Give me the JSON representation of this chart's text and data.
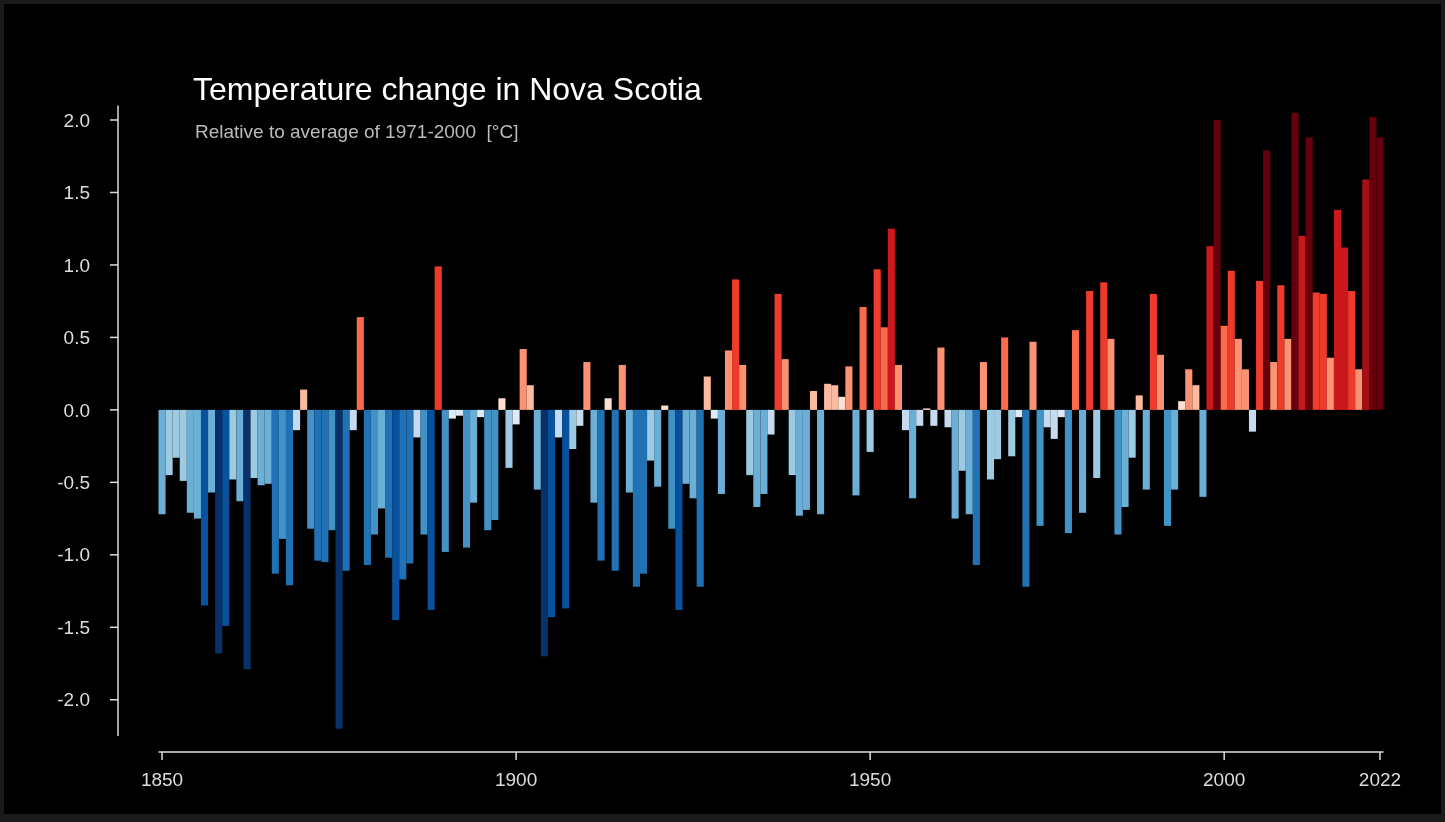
{
  "chart_data": {
    "type": "bar",
    "title": "Temperature change in Nova Scotia",
    "subtitle": "Relative to average of 1971-2000  [°C]",
    "x": [
      1850,
      1851,
      1852,
      1853,
      1854,
      1855,
      1856,
      1857,
      1858,
      1859,
      1860,
      1861,
      1862,
      1863,
      1864,
      1865,
      1866,
      1867,
      1868,
      1869,
      1870,
      1871,
      1872,
      1873,
      1874,
      1875,
      1876,
      1877,
      1878,
      1879,
      1880,
      1881,
      1882,
      1883,
      1884,
      1885,
      1886,
      1887,
      1888,
      1889,
      1890,
      1891,
      1892,
      1893,
      1894,
      1895,
      1896,
      1897,
      1898,
      1899,
      1900,
      1901,
      1902,
      1903,
      1904,
      1905,
      1906,
      1907,
      1908,
      1909,
      1910,
      1911,
      1912,
      1913,
      1914,
      1915,
      1916,
      1917,
      1918,
      1919,
      1920,
      1921,
      1922,
      1923,
      1924,
      1925,
      1926,
      1927,
      1928,
      1929,
      1930,
      1931,
      1932,
      1933,
      1934,
      1935,
      1936,
      1937,
      1938,
      1939,
      1940,
      1941,
      1942,
      1943,
      1944,
      1945,
      1946,
      1947,
      1948,
      1949,
      1950,
      1951,
      1952,
      1953,
      1954,
      1955,
      1956,
      1957,
      1958,
      1959,
      1960,
      1961,
      1962,
      1963,
      1964,
      1965,
      1966,
      1967,
      1968,
      1969,
      1970,
      1971,
      1972,
      1973,
      1974,
      1975,
      1976,
      1977,
      1978,
      1979,
      1980,
      1981,
      1982,
      1983,
      1984,
      1985,
      1986,
      1987,
      1988,
      1989,
      1990,
      1991,
      1992,
      1993,
      1994,
      1995,
      1996,
      1997,
      1998,
      1999,
      2000,
      2001,
      2002,
      2003,
      2004,
      2005,
      2006,
      2007,
      2008,
      2009,
      2010,
      2011,
      2012,
      2013,
      2014,
      2015,
      2016,
      2017,
      2018,
      2019,
      2020,
      2021,
      2022
    ],
    "values": [
      -0.72,
      -0.45,
      -0.33,
      -0.49,
      -0.71,
      -0.75,
      -1.35,
      -0.57,
      -1.68,
      -1.49,
      -0.48,
      -0.63,
      -1.79,
      -0.47,
      -0.52,
      -0.51,
      -1.13,
      -0.89,
      -1.21,
      -0.14,
      0.14,
      -0.82,
      -1.04,
      -1.05,
      -0.83,
      -2.2,
      -1.11,
      -0.14,
      0.64,
      -1.07,
      -0.86,
      -0.68,
      -1.02,
      -1.45,
      -1.17,
      -1.06,
      -0.19,
      -0.86,
      -1.38,
      0.99,
      -0.98,
      -0.06,
      -0.04,
      -0.95,
      -0.64,
      -0.05,
      -0.83,
      -0.76,
      0.08,
      -0.4,
      -0.1,
      0.42,
      0.17,
      -0.55,
      -1.7,
      -1.43,
      -0.19,
      -1.37,
      -0.27,
      -0.11,
      0.33,
      -0.64,
      -1.04,
      0.08,
      -1.11,
      0.31,
      -0.57,
      -1.22,
      -1.13,
      -0.35,
      -0.53,
      0.03,
      -0.82,
      -1.38,
      -0.51,
      -0.61,
      -1.22,
      0.23,
      -0.06,
      -0.58,
      0.41,
      0.9,
      0.31,
      -0.45,
      -0.67,
      -0.58,
      -0.17,
      0.8,
      0.35,
      -0.45,
      -0.73,
      -0.69,
      0.13,
      -0.72,
      0.18,
      0.17,
      0.09,
      0.3,
      -0.59,
      0.71,
      -0.29,
      0.97,
      0.57,
      1.25,
      0.31,
      -0.14,
      -0.61,
      -0.11,
      0.01,
      -0.11,
      0.43,
      -0.12,
      -0.75,
      -0.42,
      -0.72,
      -1.07,
      0.33,
      -0.48,
      -0.34,
      0.5,
      -0.32,
      -0.05,
      -1.22,
      0.47,
      -0.8,
      -0.12,
      -0.2,
      -0.05,
      -0.85,
      0.55,
      -0.71,
      0.82,
      -0.47,
      0.88,
      0.49,
      -0.86,
      -0.67,
      -0.33,
      0.1,
      -0.55,
      0.8,
      0.38,
      -0.8,
      -0.55,
      0.06,
      0.28,
      0.17,
      -0.6,
      1.13,
      2.0,
      0.58,
      0.96,
      0.49,
      0.28,
      -0.15,
      0.89,
      1.79,
      0.33,
      0.86,
      0.49,
      2.05,
      1.2,
      1.88,
      0.81,
      0.8,
      0.36,
      1.38,
      1.12,
      0.82,
      0.28,
      1.59,
      2.02,
      1.88
    ],
    "colors": [
      "#6baed6",
      "#9ecae1",
      "#9ecae1",
      "#9ecae1",
      "#6baed6",
      "#6baed6",
      "#08519c",
      "#6baed6",
      "#08306b",
      "#08519c",
      "#9ecae1",
      "#6baed6",
      "#08306b",
      "#9ecae1",
      "#6baed6",
      "#6baed6",
      "#2171b5",
      "#4292c6",
      "#2171b5",
      "#c6dbef",
      "#fcbba1",
      "#4292c6",
      "#2171b5",
      "#2171b5",
      "#4292c6",
      "#08306b",
      "#2171b5",
      "#c6dbef",
      "#fb6a4a",
      "#2171b5",
      "#4292c6",
      "#6baed6",
      "#2171b5",
      "#08519c",
      "#2171b5",
      "#2171b5",
      "#c6dbef",
      "#4292c6",
      "#08519c",
      "#ef3b2c",
      "#4292c6",
      "#deebf7",
      "#deebf7",
      "#4292c6",
      "#6baed6",
      "#deebf7",
      "#4292c6",
      "#4292c6",
      "#fee0d2",
      "#9ecae1",
      "#deebf7",
      "#fc9272",
      "#fcbba1",
      "#6baed6",
      "#08306b",
      "#08519c",
      "#c6dbef",
      "#08519c",
      "#9ecae1",
      "#c6dbef",
      "#fc9272",
      "#6baed6",
      "#2171b5",
      "#fee0d2",
      "#2171b5",
      "#fc9272",
      "#6baed6",
      "#2171b5",
      "#2171b5",
      "#9ecae1",
      "#6baed6",
      "#fee0d2",
      "#4292c6",
      "#08519c",
      "#6baed6",
      "#6baed6",
      "#2171b5",
      "#fcbba1",
      "#deebf7",
      "#6baed6",
      "#fc9272",
      "#ef3b2c",
      "#fc9272",
      "#9ecae1",
      "#6baed6",
      "#6baed6",
      "#c6dbef",
      "#ef3b2c",
      "#fc9272",
      "#9ecae1",
      "#6baed6",
      "#6baed6",
      "#fcbba1",
      "#6baed6",
      "#fcbba1",
      "#fcbba1",
      "#fee0d2",
      "#fc9272",
      "#6baed6",
      "#fb6a4a",
      "#9ecae1",
      "#ef3b2c",
      "#fb6a4a",
      "#cb181d",
      "#fc9272",
      "#c6dbef",
      "#6baed6",
      "#c6dbef",
      "#fee0d2",
      "#c6dbef",
      "#fc9272",
      "#c6dbef",
      "#6baed6",
      "#9ecae1",
      "#6baed6",
      "#2171b5",
      "#fc9272",
      "#9ecae1",
      "#9ecae1",
      "#fb6a4a",
      "#9ecae1",
      "#deebf7",
      "#2171b5",
      "#fc9272",
      "#4292c6",
      "#c6dbef",
      "#c6dbef",
      "#deebf7",
      "#4292c6",
      "#fb6a4a",
      "#6baed6",
      "#ef3b2c",
      "#9ecae1",
      "#ef3b2c",
      "#fc9272",
      "#4292c6",
      "#6baed6",
      "#9ecae1",
      "#fcbba1",
      "#6baed6",
      "#ef3b2c",
      "#fc9272",
      "#4292c6",
      "#6baed6",
      "#fee0d2",
      "#fc9272",
      "#fcbba1",
      "#6baed6",
      "#cb181d",
      "#67000d",
      "#fb6a4a",
      "#ef3b2c",
      "#fc9272",
      "#fc9272",
      "#c6dbef",
      "#ef3b2c",
      "#67000d",
      "#fc9272",
      "#ef3b2c",
      "#fc9272",
      "#67000d",
      "#cb181d",
      "#67000d",
      "#ef3b2c",
      "#ef3b2c",
      "#fc9272",
      "#cb181d",
      "#cb181d",
      "#ef3b2c",
      "#fc9272",
      "#a50f15",
      "#67000d",
      "#67000d"
    ],
    "xlim": [
      1849.5,
      2022.5
    ],
    "xticks": [
      1850,
      1900,
      1950,
      2000,
      2022
    ],
    "ylim": [
      -2.25,
      2.1
    ],
    "yticks": [
      {
        "value": -2,
        "label": "-2.0"
      },
      {
        "value": -1.5,
        "label": "-1.5"
      },
      {
        "value": -1,
        "label": "-1.0"
      },
      {
        "value": -0.5,
        "label": "-0.5"
      },
      {
        "value": 0,
        "label": "0.0"
      },
      {
        "value": 0.5,
        "label": "0.5"
      },
      {
        "value": 1,
        "label": "1.0"
      },
      {
        "value": 1.5,
        "label": "1.5"
      },
      {
        "value": 2,
        "label": "2.0"
      }
    ],
    "grid": false
  }
}
